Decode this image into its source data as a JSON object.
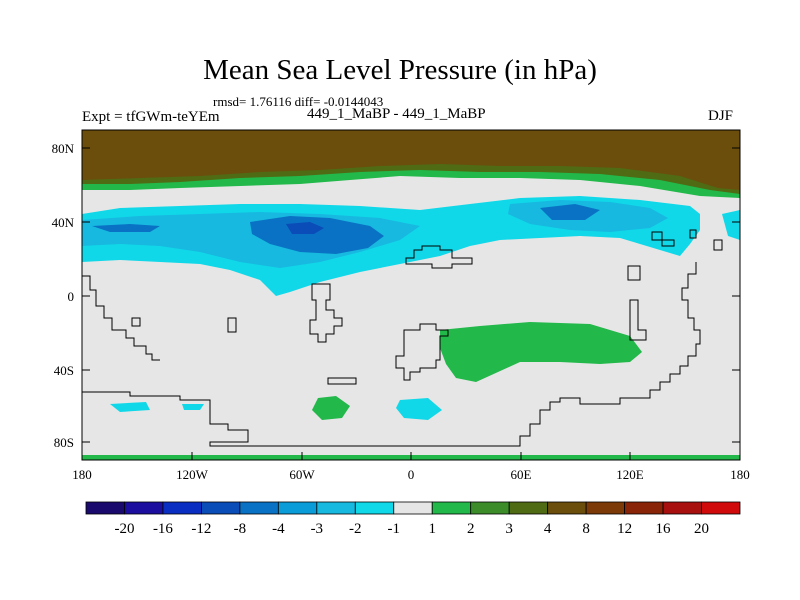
{
  "title": "Mean Sea Level Pressure (in hPa)",
  "stats": "rmsd= 1.76116 diff= -0.0144043",
  "expt": "Expt = tfGWm-teYEm",
  "cases": "449_1_MaBP - 449_1_MaBP",
  "season": "DJF",
  "lat_labels": [
    "80N",
    "40N",
    "0",
    "40S",
    "80S"
  ],
  "lon_labels": [
    "180",
    "120W",
    "60W",
    "0",
    "60E",
    "120E",
    "180"
  ],
  "colorbar": {
    "labels": [
      "-20",
      "-16",
      "-12",
      "-8",
      "-4",
      "-3",
      "-2",
      "-1",
      "1",
      "2",
      "3",
      "4",
      "8",
      "12",
      "16",
      "20"
    ],
    "colors": [
      "#1a0a6e",
      "#1c0fa0",
      "#0b2ec2",
      "#0a4cb8",
      "#0a72c4",
      "#0a9cd8",
      "#17b9e0",
      "#10d8e8",
      "#e6e6e6",
      "#22b84a",
      "#3c8c2a",
      "#4f6b14",
      "#6b4e0c",
      "#7c3a08",
      "#8a2408",
      "#a81010",
      "#d00a0a"
    ]
  },
  "legend_regions": {
    "north_high": {
      "color": "#6b4e0c",
      "level": "8"
    },
    "north_belt": {
      "color": "#4f6b14",
      "level": "4"
    },
    "north_thin": {
      "color": "#22b84a",
      "level": "2"
    },
    "midlat_low": {
      "color": "#10d8e8",
      "level": "-1"
    },
    "midlat_mid": {
      "color": "#17b9e0",
      "level": "-2"
    },
    "midlat_deep": {
      "color": "#0a72c4",
      "level": "-4"
    },
    "southern_high": {
      "color": "#22b84a",
      "level": "2"
    },
    "neutral": {
      "color": "#e6e6e6",
      "level": "1"
    }
  }
}
